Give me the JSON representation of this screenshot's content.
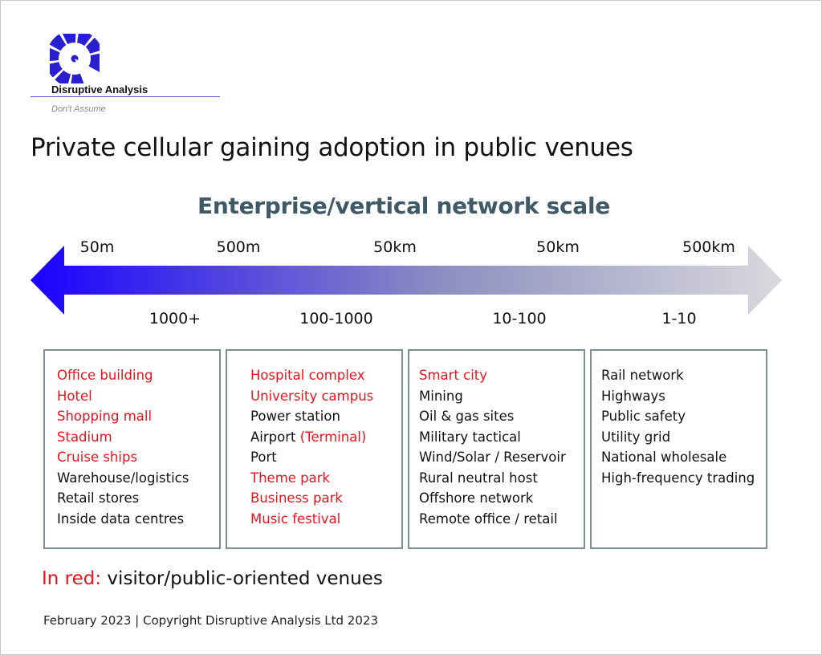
{
  "logo": {
    "name": "Disruptive Analysis",
    "tagline": "Don't Assume",
    "brand_color": "#2a1fd0"
  },
  "title": "Private cellular gaining adoption in public venues",
  "scale_title": "Enterprise/vertical network scale",
  "arrow": {
    "gradient_start": "#1a00ff",
    "gradient_end": "#d9d9dd",
    "distances": [
      "50m",
      "500m",
      "50km",
      "50km",
      "500km"
    ],
    "counts": [
      "1000+",
      "100-1000",
      "10-100",
      "1-10"
    ]
  },
  "columns": [
    {
      "items": [
        {
          "text": "Office building",
          "red": true
        },
        {
          "text": "Hotel",
          "red": true
        },
        {
          "text": "Shopping mall",
          "red": true
        },
        {
          "text": "Stadium",
          "red": true
        },
        {
          "text": "Cruise ships",
          "red": true
        },
        {
          "text": "Warehouse/logistics",
          "red": false
        },
        {
          "text": "Retail stores",
          "red": false
        },
        {
          "text": "Inside data centres",
          "red": false
        }
      ]
    },
    {
      "items": [
        {
          "text": "Hospital complex",
          "red": true
        },
        {
          "text": "University campus",
          "red": true
        },
        {
          "text": "Power station",
          "red": false
        },
        {
          "text": "Airport",
          "red": false,
          "red_suffix": " (Terminal)"
        },
        {
          "text": "Port",
          "red": false
        },
        {
          "text": "Theme park",
          "red": true
        },
        {
          "text": "Business park",
          "red": true
        },
        {
          "text": "Music festival",
          "red": true
        }
      ]
    },
    {
      "items": [
        {
          "text": "Smart city",
          "red": true
        },
        {
          "text": "Mining",
          "red": false
        },
        {
          "text": "Oil & gas sites",
          "red": false
        },
        {
          "text": "Military tactical",
          "red": false
        },
        {
          "text": "Wind/Solar / Reservoir",
          "red": false
        },
        {
          "text": "Rural neutral host",
          "red": false
        },
        {
          "text": "Offshore network",
          "red": false
        },
        {
          "text": "Remote office / retail",
          "red": false
        }
      ]
    },
    {
      "items": [
        {
          "text": "Rail network",
          "red": false
        },
        {
          "text": "Highways",
          "red": false
        },
        {
          "text": "Public safety",
          "red": false
        },
        {
          "text": "Utility grid",
          "red": false
        },
        {
          "text": "National wholesale",
          "red": false
        },
        {
          "text": "High-frequency trading",
          "red": false
        }
      ]
    }
  ],
  "legend": {
    "red_label": "In red:",
    "text": " visitor/public-oriented venues",
    "red_color": "#e8141e"
  },
  "footer": "February 2023  |  Copyright Disruptive Analysis Ltd 2023"
}
